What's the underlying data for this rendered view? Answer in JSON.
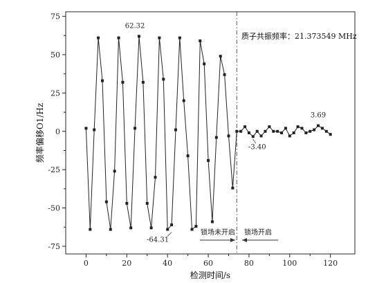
{
  "chart_data": {
    "type": "line",
    "xlabel": "检测时间/s",
    "ylabel": "频率偏移O1/Hz",
    "xlim": [
      -10,
      132
    ],
    "ylim": [
      -80,
      78
    ],
    "x_ticks": [
      0,
      20,
      40,
      60,
      80,
      100,
      120
    ],
    "y_ticks": [
      -75,
      -50,
      -25,
      0,
      25,
      50,
      75
    ],
    "grid": false,
    "marker": "square",
    "line_color": "#222222",
    "divider_x": 74,
    "proton_label": "质子共振频率：21.373549 MHz",
    "region_labels": {
      "before": "锁场未开启",
      "after": "锁场开启"
    },
    "series": [
      {
        "x": [
          0,
          2,
          4,
          6,
          8,
          10,
          12,
          14,
          16,
          18,
          20,
          22,
          24,
          26,
          28,
          30,
          32,
          34,
          36,
          38,
          40,
          42,
          44,
          46,
          48,
          50,
          52,
          54,
          56,
          58,
          60,
          62,
          64,
          66,
          68,
          70,
          72,
          74,
          76,
          78,
          80,
          82,
          84,
          86,
          88,
          90,
          92,
          94,
          96,
          98,
          100,
          102,
          104,
          106,
          108,
          110,
          112,
          114,
          116,
          118,
          120
        ],
        "y": [
          2,
          -64,
          1,
          61,
          33,
          -46,
          -64,
          -26,
          61,
          32,
          -47,
          -63,
          2,
          62,
          32,
          -47,
          -63,
          -30,
          61,
          34,
          -64,
          -61,
          1,
          61,
          20,
          -16,
          -64,
          -62,
          59,
          44,
          -19,
          -59,
          -4,
          49,
          37,
          -3,
          -37,
          0,
          0,
          3,
          -1,
          -3.4,
          0,
          -3,
          0,
          3,
          0,
          0,
          -1,
          2,
          -3,
          -1,
          3,
          2,
          -1,
          0,
          1,
          3.69,
          2,
          0,
          -2
        ]
      }
    ],
    "annotations": [
      {
        "text": "62.32",
        "x": 24,
        "y": 62
      },
      {
        "text": "-64.31",
        "x": 42,
        "y": -64
      },
      {
        "text": "-3.40",
        "x": 82,
        "y": -3.4
      },
      {
        "text": "3.69",
        "x": 114,
        "y": 3.69
      }
    ]
  }
}
